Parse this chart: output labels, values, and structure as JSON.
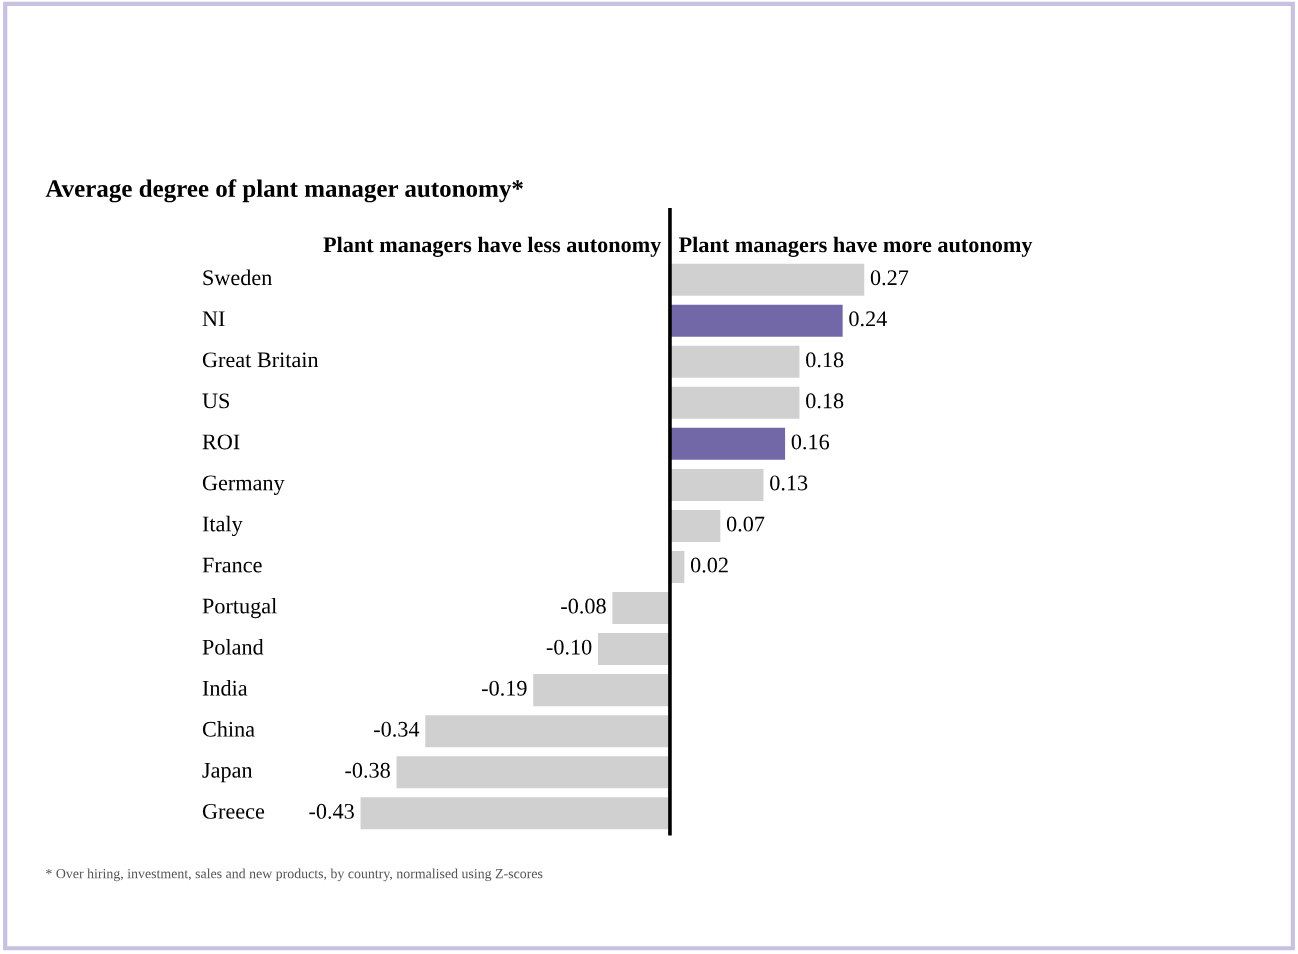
{
  "chart_data": {
    "type": "bar",
    "orientation": "horizontal",
    "title": "Average degree of plant manager autonomy*",
    "categories": [
      "Sweden",
      "NI",
      "Great Britain",
      "US",
      "ROI",
      "Germany",
      "Italy",
      "France",
      "Portugal",
      "Poland",
      "India",
      "China",
      "Japan",
      "Greece"
    ],
    "values": [
      0.27,
      0.24,
      0.18,
      0.18,
      0.16,
      0.13,
      0.07,
      0.02,
      -0.08,
      -0.1,
      -0.19,
      -0.34,
      -0.38,
      -0.43
    ],
    "value_labels": [
      "0.27",
      "0.24",
      "0.18",
      "0.18",
      "0.16",
      "0.13",
      "0.07",
      "0.02",
      "-0.08",
      "-0.10",
      "-0.19",
      "-0.34",
      "-0.38",
      "-0.43"
    ],
    "colors": [
      "#d0d0d0",
      "#7268a8",
      "#d0d0d0",
      "#d0d0d0",
      "#7268a8",
      "#d0d0d0",
      "#d0d0d0",
      "#d0d0d0",
      "#d0d0d0",
      "#d0d0d0",
      "#d0d0d0",
      "#d0d0d0",
      "#d0d0d0",
      "#d0d0d0"
    ],
    "annotations": [
      "Plant managers have less autonomy",
      "Plant managers have more autonomy",
      "* Over hiring, investment, sales and new products, by country, normalised using Z-scores"
    ],
    "legend": false
  }
}
